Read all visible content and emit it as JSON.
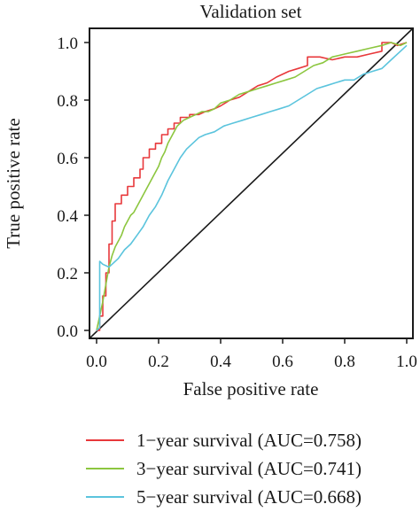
{
  "chart_data": {
    "type": "line",
    "title": "Validation set",
    "xlabel": "False positive rate",
    "ylabel": "True positive rate",
    "xlim": [
      0,
      1
    ],
    "ylim": [
      0,
      1
    ],
    "xticks": [
      0,
      0.2,
      0.4,
      0.6,
      0.8,
      1
    ],
    "xtick_labels": [
      "0.0",
      "0.2",
      "0.4",
      "0.6",
      "0.8",
      "1.0"
    ],
    "yticks": [
      0,
      0.2,
      0.4,
      0.6,
      0.8,
      1
    ],
    "ytick_labels": [
      "0.0",
      "0.2",
      "0.4",
      "0.6",
      "0.8",
      "1.0"
    ],
    "grid": false,
    "legend_position": "bottom",
    "diagonal_reference": true,
    "series": [
      {
        "name": "1−year survival (AUC=0.758)",
        "color": "#e8383b",
        "x": [
          0,
          0.01,
          0.01,
          0.02,
          0.02,
          0.03,
          0.03,
          0.04,
          0.04,
          0.05,
          0.05,
          0.06,
          0.06,
          0.08,
          0.08,
          0.1,
          0.1,
          0.12,
          0.12,
          0.14,
          0.14,
          0.15,
          0.15,
          0.17,
          0.17,
          0.19,
          0.19,
          0.21,
          0.21,
          0.23,
          0.23,
          0.25,
          0.25,
          0.27,
          0.27,
          0.3,
          0.3,
          0.33,
          0.35,
          0.38,
          0.4,
          0.43,
          0.46,
          0.49,
          0.52,
          0.55,
          0.58,
          0.62,
          0.65,
          0.68,
          0.68,
          0.72,
          0.76,
          0.8,
          0.84,
          0.88,
          0.92,
          0.92,
          0.95,
          0.97,
          1.0
        ],
        "y": [
          0,
          0,
          0.05,
          0.05,
          0.12,
          0.12,
          0.2,
          0.2,
          0.3,
          0.3,
          0.38,
          0.38,
          0.44,
          0.44,
          0.47,
          0.47,
          0.5,
          0.5,
          0.53,
          0.53,
          0.56,
          0.56,
          0.6,
          0.6,
          0.63,
          0.63,
          0.65,
          0.65,
          0.68,
          0.68,
          0.7,
          0.7,
          0.72,
          0.72,
          0.74,
          0.74,
          0.75,
          0.75,
          0.76,
          0.77,
          0.78,
          0.8,
          0.81,
          0.83,
          0.85,
          0.86,
          0.88,
          0.9,
          0.91,
          0.92,
          0.95,
          0.95,
          0.94,
          0.95,
          0.95,
          0.96,
          0.97,
          1.0,
          1.0,
          0.99,
          1.0
        ]
      },
      {
        "name": "3−year survival (AUC=0.741)",
        "color": "#8cc63f",
        "x": [
          0,
          0.01,
          0.02,
          0.03,
          0.04,
          0.05,
          0.06,
          0.07,
          0.08,
          0.09,
          0.1,
          0.11,
          0.12,
          0.13,
          0.14,
          0.15,
          0.16,
          0.17,
          0.18,
          0.19,
          0.2,
          0.21,
          0.22,
          0.23,
          0.24,
          0.25,
          0.26,
          0.28,
          0.3,
          0.32,
          0.34,
          0.36,
          0.38,
          0.4,
          0.43,
          0.46,
          0.49,
          0.52,
          0.55,
          0.58,
          0.61,
          0.64,
          0.67,
          0.7,
          0.73,
          0.76,
          0.8,
          0.84,
          0.88,
          0.92,
          0.95,
          0.98,
          1.0
        ],
        "y": [
          0,
          0.05,
          0.1,
          0.16,
          0.22,
          0.26,
          0.29,
          0.31,
          0.33,
          0.36,
          0.38,
          0.4,
          0.41,
          0.43,
          0.45,
          0.47,
          0.49,
          0.51,
          0.53,
          0.55,
          0.57,
          0.6,
          0.62,
          0.65,
          0.67,
          0.69,
          0.71,
          0.73,
          0.74,
          0.75,
          0.76,
          0.76,
          0.77,
          0.79,
          0.8,
          0.82,
          0.83,
          0.84,
          0.85,
          0.86,
          0.87,
          0.88,
          0.9,
          0.92,
          0.93,
          0.95,
          0.96,
          0.97,
          0.98,
          0.99,
          1.0,
          0.99,
          1.0
        ]
      },
      {
        "name": "5−year survival (AUC=0.668)",
        "color": "#5bc4dd",
        "x": [
          0,
          0.01,
          0.01,
          0.02,
          0.04,
          0.05,
          0.07,
          0.09,
          0.11,
          0.13,
          0.15,
          0.17,
          0.19,
          0.21,
          0.23,
          0.25,
          0.27,
          0.29,
          0.31,
          0.33,
          0.35,
          0.38,
          0.41,
          0.44,
          0.47,
          0.5,
          0.53,
          0.56,
          0.59,
          0.62,
          0.65,
          0.68,
          0.71,
          0.74,
          0.77,
          0.8,
          0.83,
          0.86,
          0.89,
          0.92,
          0.95,
          0.98,
          1.0
        ],
        "y": [
          0,
          0.01,
          0.24,
          0.23,
          0.22,
          0.23,
          0.25,
          0.28,
          0.3,
          0.33,
          0.36,
          0.4,
          0.43,
          0.47,
          0.52,
          0.56,
          0.6,
          0.63,
          0.65,
          0.67,
          0.68,
          0.69,
          0.71,
          0.72,
          0.73,
          0.74,
          0.75,
          0.76,
          0.77,
          0.78,
          0.8,
          0.82,
          0.84,
          0.85,
          0.86,
          0.87,
          0.87,
          0.89,
          0.9,
          0.91,
          0.94,
          0.97,
          0.99
        ]
      }
    ]
  }
}
